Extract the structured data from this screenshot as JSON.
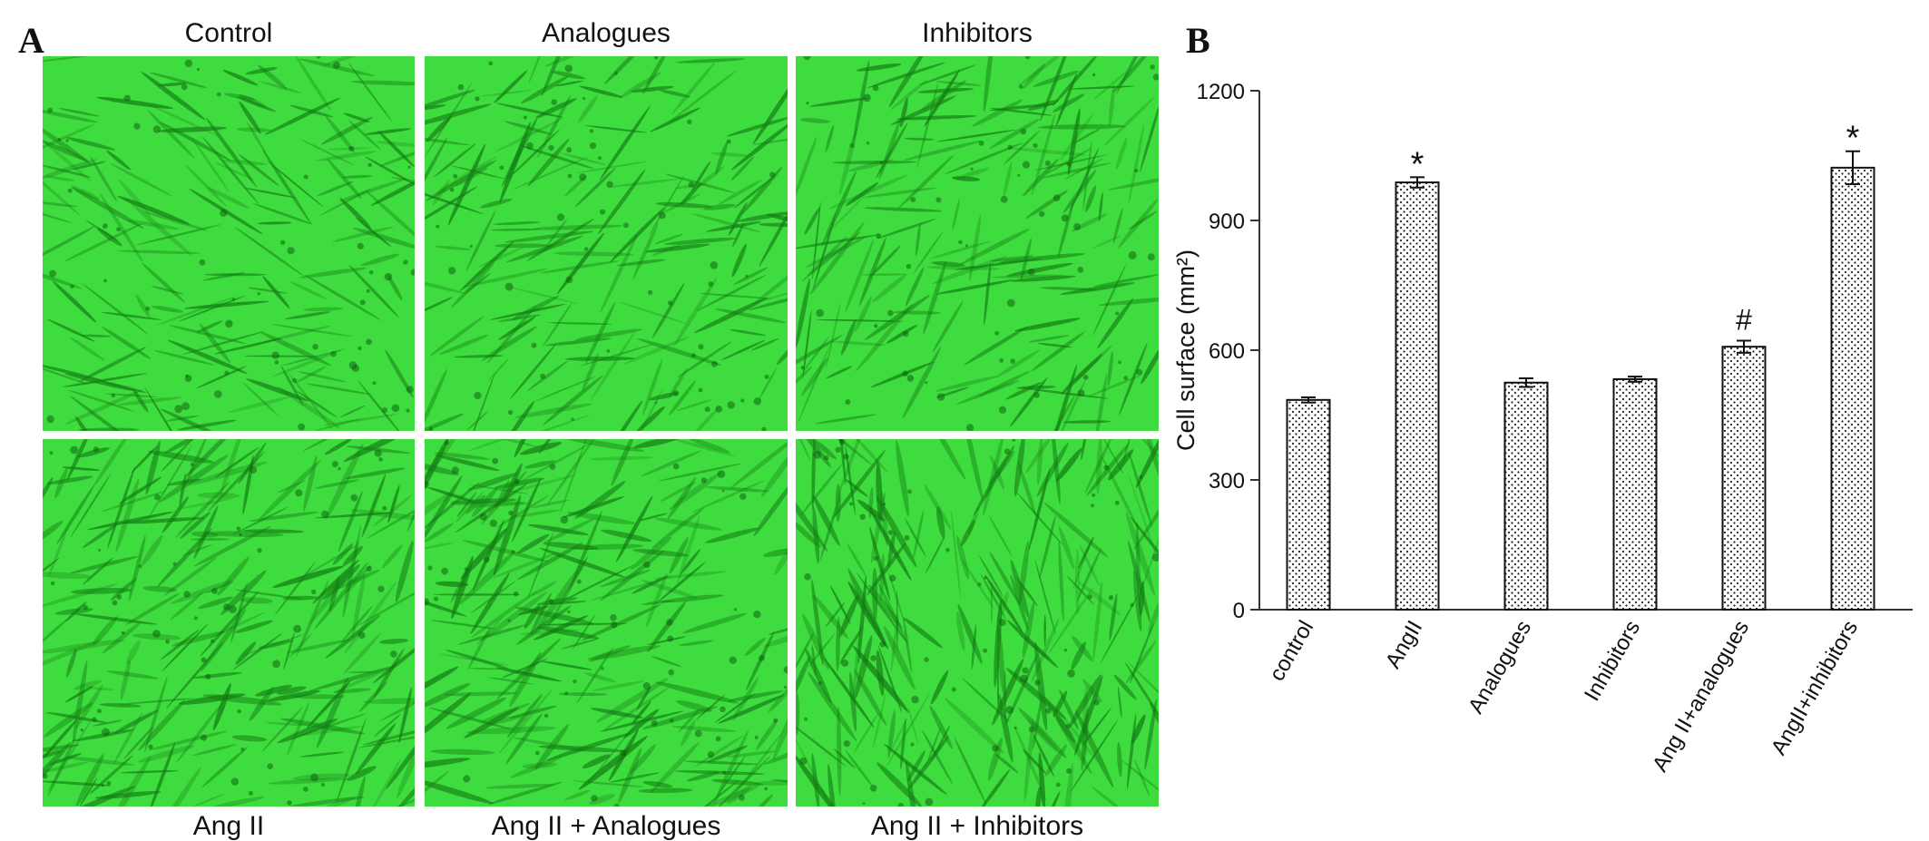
{
  "panel_a": {
    "letter": "A",
    "top_labels": [
      "Control",
      "Analogues",
      "Inhibitors"
    ],
    "bottom_labels": [
      "Ang II",
      "Ang II + Analogues",
      "Ang II + Inhibitors"
    ],
    "image_tint": "#3fdc3f",
    "image_dark": "#127a12"
  },
  "panel_b": {
    "letter": "B"
  },
  "chart_data": {
    "type": "bar",
    "title": "",
    "xlabel": "",
    "ylabel": "Cell surface (mm²)",
    "categories": [
      "control",
      "AngII",
      "Analogues",
      "Inhibitors",
      "Ang II+analogues",
      "AngII+inhibitors"
    ],
    "values": [
      485,
      988,
      525,
      533,
      608,
      1022
    ],
    "errors": [
      6,
      12,
      10,
      6,
      14,
      38
    ],
    "annotations": [
      "",
      "*",
      "",
      "",
      "#",
      "*"
    ],
    "ylim": [
      0,
      1200
    ],
    "yticks": [
      0,
      300,
      600,
      900,
      1200
    ],
    "bar_pattern": "dotted",
    "bar_fill": "#ffffff",
    "bar_stroke": "#111111",
    "grid": false,
    "legend": "none"
  }
}
